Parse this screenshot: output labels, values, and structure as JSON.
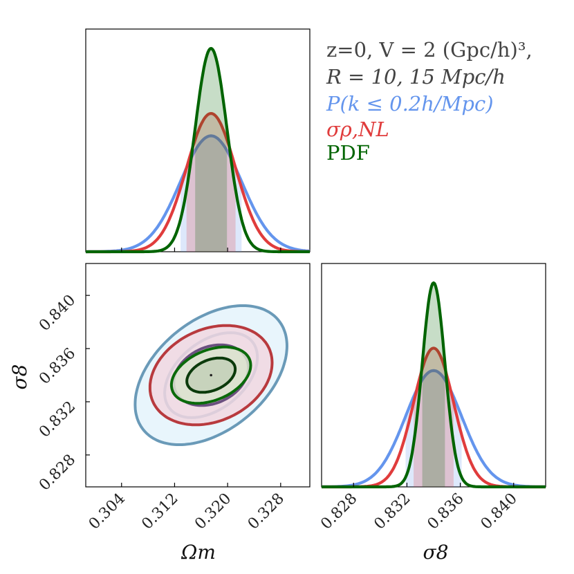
{
  "legend": {
    "line1": "z=0, V = 2 (Gpc/h)³,",
    "line2": "R = 10, 15 Mpc/h",
    "line3": "P(k ≤ 0.2h/Mpc)",
    "line4": "σρ,NL",
    "line5": "PDF"
  },
  "colors": {
    "blue": "#6495ED",
    "red": "#E03C3C",
    "green": "#006400",
    "blueContourFill": "#E8F5FC",
    "blueContourLine": "#6A9AB8",
    "redContourFill": "#F1D7E0",
    "redContourLine": "#B83A3E",
    "purpleLine": "#6B5080",
    "darkRedLine": "#8A1C22",
    "greenContourFill": "#DCE6D0",
    "greenContourLine": "#0A6A0A",
    "darkGreenLine": "#0B3A0B"
  },
  "chart_data": {
    "type": "corner",
    "parameters": [
      "Omega_m",
      "sigma8"
    ],
    "fiducial": {
      "Omega_m": 0.3175,
      "sigma8": 0.834
    },
    "axes": {
      "Omega_m": {
        "label": "Ωm",
        "range": [
          0.2986,
          0.3324
        ],
        "ticks": [
          0.304,
          0.312,
          0.32,
          0.328
        ],
        "tick_labels": [
          "0.304",
          "0.312",
          "0.320",
          "0.328"
        ]
      },
      "sigma8": {
        "label": "σ8",
        "range": [
          0.8256,
          0.8424
        ],
        "ticks": [
          0.828,
          0.832,
          0.836,
          0.84
        ],
        "tick_labels": [
          "0.828",
          "0.832",
          "0.836",
          "0.840"
        ]
      }
    },
    "series": [
      {
        "name": "P(k ≤ 0.2h/Mpc)",
        "color_key": "blue",
        "sigma_Omega_m": 0.0046,
        "sigma_sigma8": 0.0021,
        "corr": 0.42,
        "peak_relative": 0.57
      },
      {
        "name": "σρ,NL",
        "color_key": "red",
        "sigma_Omega_m": 0.0037,
        "sigma_sigma8": 0.0015,
        "corr": 0.25,
        "peak_relative": 0.68
      },
      {
        "name": "PDF",
        "color_key": "green",
        "sigma_Omega_m": 0.0024,
        "sigma_sigma8": 0.00085,
        "corr": 0.35,
        "peak_relative": 1.0
      }
    ]
  }
}
